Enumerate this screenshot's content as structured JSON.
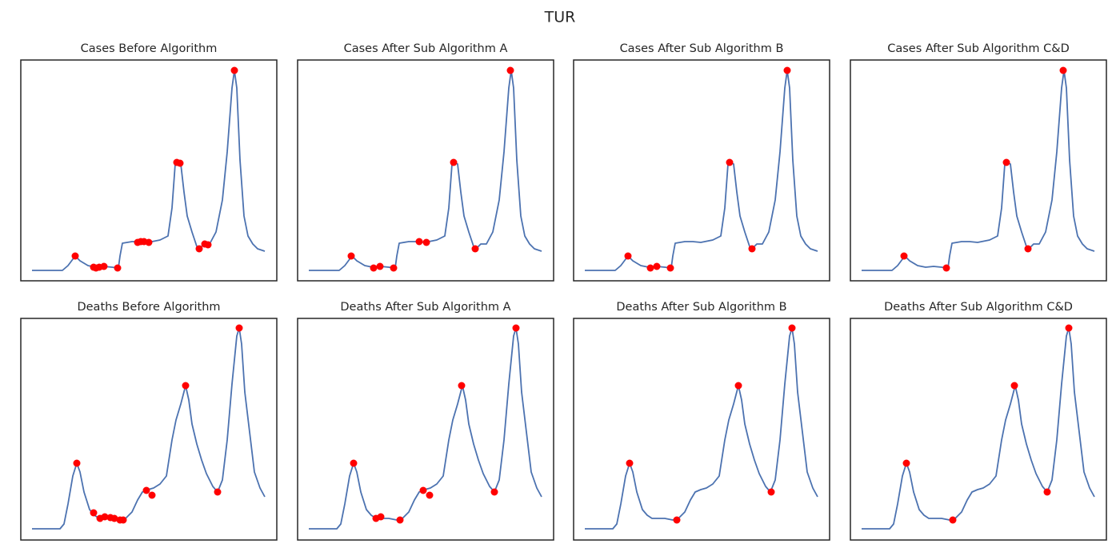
{
  "title": "TUR",
  "chart_data": [
    {
      "type": "line",
      "title": "Cases Before Algorithm",
      "xlim": [
        0,
        320
      ],
      "ylim": [
        0,
        276
      ],
      "x": [
        14,
        52,
        59,
        68,
        74,
        84,
        94,
        104,
        114,
        122,
        124,
        127,
        139,
        149,
        159,
        174,
        184,
        189,
        193,
        196,
        200,
        204,
        208,
        214,
        220,
        223,
        229,
        236,
        244,
        252,
        258,
        264,
        267,
        270,
        274,
        279,
        284,
        290,
        296,
        305
      ],
      "series": [
        {
          "color": "#4c72b0",
          "values": [
            13,
            13,
            19,
            31,
            25,
            19,
            17,
            18,
            17,
            16,
            31,
            47,
            49,
            49,
            48,
            51,
            56,
            91,
            146,
            148,
            146,
            111,
            81,
            61,
            43,
            40,
            46,
            46,
            61,
            101,
            161,
            241,
            263,
            241,
            151,
            81,
            56,
            46,
            40,
            37
          ]
        },
        {
          "type": "scatter",
          "color": "#ff0000",
          "x": [
            68,
            91,
            94,
            98,
            104,
            121,
            146,
            150,
            154,
            160,
            195,
            199,
            223,
            230,
            234,
            267
          ],
          "values": [
            31,
            17,
            16,
            17,
            18,
            16,
            48,
            49,
            49,
            48,
            148,
            147,
            40,
            46,
            45,
            263
          ]
        }
      ]
    },
    {
      "type": "line",
      "title": "Cases After Sub Algorithm A",
      "xlim": [
        0,
        320
      ],
      "ylim": [
        0,
        276
      ],
      "x": [
        14,
        52,
        59,
        68,
        74,
        84,
        94,
        104,
        114,
        122,
        124,
        127,
        139,
        149,
        159,
        174,
        184,
        189,
        193,
        196,
        200,
        204,
        208,
        214,
        220,
        223,
        229,
        236,
        244,
        252,
        258,
        264,
        267,
        270,
        274,
        279,
        284,
        290,
        296,
        305
      ],
      "series": [
        {
          "color": "#4c72b0",
          "values": [
            13,
            13,
            19,
            31,
            25,
            19,
            17,
            18,
            17,
            16,
            31,
            47,
            49,
            49,
            48,
            51,
            56,
            91,
            146,
            148,
            146,
            111,
            81,
            61,
            43,
            40,
            46,
            46,
            61,
            101,
            161,
            241,
            263,
            241,
            151,
            81,
            56,
            46,
            40,
            37
          ]
        },
        {
          "type": "scatter",
          "color": "#ff0000",
          "x": [
            67,
            95,
            103,
            120,
            152,
            161,
            195,
            222,
            266
          ],
          "values": [
            31,
            16,
            18,
            16,
            49,
            48,
            148,
            40,
            263
          ]
        }
      ]
    },
    {
      "type": "line",
      "title": "Cases After Sub Algorithm B",
      "xlim": [
        0,
        320
      ],
      "ylim": [
        0,
        276
      ],
      "x": [
        14,
        52,
        59,
        68,
        74,
        84,
        94,
        104,
        114,
        122,
        124,
        127,
        139,
        149,
        159,
        174,
        184,
        189,
        193,
        196,
        200,
        204,
        208,
        214,
        220,
        223,
        229,
        236,
        244,
        252,
        258,
        264,
        267,
        270,
        274,
        279,
        284,
        290,
        296,
        305
      ],
      "series": [
        {
          "color": "#4c72b0",
          "values": [
            13,
            13,
            19,
            31,
            25,
            19,
            17,
            18,
            17,
            16,
            31,
            47,
            49,
            49,
            48,
            51,
            56,
            91,
            146,
            148,
            146,
            111,
            81,
            61,
            43,
            40,
            46,
            46,
            61,
            101,
            161,
            241,
            263,
            241,
            151,
            81,
            56,
            46,
            40,
            37
          ]
        },
        {
          "type": "scatter",
          "color": "#ff0000",
          "x": [
            68,
            96,
            104,
            121,
            195,
            223,
            267
          ],
          "values": [
            31,
            16,
            18,
            16,
            148,
            40,
            263
          ]
        }
      ]
    },
    {
      "type": "line",
      "title": "Cases After Sub Algorithm C&D",
      "xlim": [
        0,
        320
      ],
      "ylim": [
        0,
        276
      ],
      "x": [
        14,
        52,
        59,
        68,
        74,
        84,
        94,
        104,
        114,
        122,
        124,
        127,
        139,
        149,
        159,
        174,
        184,
        189,
        193,
        196,
        200,
        204,
        208,
        214,
        220,
        223,
        229,
        236,
        244,
        252,
        258,
        264,
        267,
        270,
        274,
        279,
        284,
        290,
        296,
        305
      ],
      "series": [
        {
          "color": "#4c72b0",
          "values": [
            13,
            13,
            19,
            31,
            25,
            19,
            17,
            18,
            17,
            16,
            31,
            47,
            49,
            49,
            48,
            51,
            56,
            91,
            146,
            148,
            146,
            111,
            81,
            61,
            43,
            40,
            46,
            46,
            61,
            101,
            161,
            241,
            263,
            241,
            151,
            81,
            56,
            46,
            40,
            37
          ]
        },
        {
          "type": "scatter",
          "color": "#ff0000",
          "x": [
            67,
            120,
            195,
            222,
            266
          ],
          "values": [
            31,
            16,
            148,
            40,
            263
          ]
        }
      ]
    },
    {
      "type": "line",
      "title": "Deaths Before Algorithm",
      "xlim": [
        0,
        320
      ],
      "ylim": [
        0,
        277
      ],
      "x": [
        14,
        49,
        54,
        59,
        65,
        70,
        74,
        79,
        86,
        92,
        98,
        104,
        114,
        124,
        131,
        139,
        146,
        152,
        159,
        166,
        174,
        182,
        189,
        194,
        200,
        206,
        210,
        214,
        220,
        226,
        232,
        240,
        246,
        252,
        258,
        264,
        270,
        273,
        276,
        280,
        286,
        292,
        299,
        305
      ],
      "series": [
        {
          "color": "#4c72b0",
          "values": [
            14,
            14,
            20,
            45,
            80,
            96,
            85,
            60,
            38,
            31,
            27,
            27,
            27,
            25,
            27,
            35,
            50,
            60,
            63,
            65,
            70,
            80,
            125,
            150,
            170,
            193,
            175,
            145,
            120,
            100,
            83,
            67,
            60,
            75,
            125,
            195,
            255,
            265,
            245,
            185,
            135,
            85,
            65,
            54
          ]
        },
        {
          "type": "scatter",
          "color": "#ff0000",
          "x": [
            70,
            91,
            99,
            105,
            112,
            117,
            124,
            128,
            157,
            164,
            206,
            246,
            273
          ],
          "values": [
            96,
            34,
            27,
            29,
            28,
            27,
            25,
            25,
            62,
            56,
            193,
            60,
            265
          ]
        }
      ]
    },
    {
      "type": "line",
      "title": "Deaths After Sub Algorithm A",
      "xlim": [
        0,
        320
      ],
      "ylim": [
        0,
        277
      ],
      "x": [
        14,
        49,
        54,
        59,
        65,
        70,
        74,
        79,
        86,
        92,
        98,
        104,
        114,
        124,
        131,
        139,
        146,
        152,
        159,
        166,
        174,
        182,
        189,
        194,
        200,
        206,
        210,
        214,
        220,
        226,
        232,
        240,
        246,
        252,
        258,
        264,
        270,
        273,
        276,
        280,
        286,
        292,
        299,
        305
      ],
      "series": [
        {
          "color": "#4c72b0",
          "values": [
            14,
            14,
            20,
            45,
            80,
            96,
            85,
            60,
            38,
            31,
            27,
            27,
            27,
            25,
            27,
            35,
            50,
            60,
            63,
            65,
            70,
            80,
            125,
            150,
            170,
            193,
            175,
            145,
            120,
            100,
            83,
            67,
            60,
            75,
            125,
            195,
            255,
            265,
            245,
            185,
            135,
            85,
            65,
            54
          ]
        },
        {
          "type": "scatter",
          "color": "#ff0000",
          "x": [
            70,
            98,
            104,
            128,
            157,
            165,
            205,
            246,
            273
          ],
          "values": [
            96,
            27,
            29,
            25,
            62,
            56,
            193,
            60,
            265
          ]
        }
      ]
    },
    {
      "type": "line",
      "title": "Deaths After Sub Algorithm B",
      "xlim": [
        0,
        320
      ],
      "ylim": [
        0,
        277
      ],
      "x": [
        14,
        49,
        54,
        59,
        65,
        70,
        74,
        79,
        86,
        92,
        98,
        104,
        114,
        124,
        131,
        139,
        146,
        152,
        159,
        166,
        174,
        182,
        189,
        194,
        200,
        206,
        210,
        214,
        220,
        226,
        232,
        240,
        246,
        252,
        258,
        264,
        270,
        273,
        276,
        280,
        286,
        292,
        299,
        305
      ],
      "series": [
        {
          "color": "#4c72b0",
          "values": [
            14,
            14,
            20,
            45,
            80,
            96,
            85,
            60,
            38,
            31,
            27,
            27,
            27,
            25,
            27,
            35,
            50,
            60,
            63,
            65,
            70,
            80,
            125,
            150,
            170,
            193,
            175,
            145,
            120,
            100,
            83,
            67,
            60,
            75,
            125,
            195,
            255,
            265,
            245,
            185,
            135,
            85,
            65,
            54
          ]
        },
        {
          "type": "scatter",
          "color": "#ff0000",
          "x": [
            70,
            129,
            206,
            247,
            273
          ],
          "values": [
            96,
            25,
            193,
            60,
            265
          ]
        }
      ]
    },
    {
      "type": "line",
      "title": "Deaths After Sub Algorithm C&D",
      "xlim": [
        0,
        320
      ],
      "ylim": [
        0,
        277
      ],
      "x": [
        14,
        49,
        54,
        59,
        65,
        70,
        74,
        79,
        86,
        92,
        98,
        104,
        114,
        124,
        131,
        139,
        146,
        152,
        159,
        166,
        174,
        182,
        189,
        194,
        200,
        206,
        210,
        214,
        220,
        226,
        232,
        240,
        246,
        252,
        258,
        264,
        270,
        273,
        276,
        280,
        286,
        292,
        299,
        305
      ],
      "series": [
        {
          "color": "#4c72b0",
          "values": [
            14,
            14,
            20,
            45,
            80,
            96,
            85,
            60,
            38,
            31,
            27,
            27,
            27,
            25,
            27,
            35,
            50,
            60,
            63,
            65,
            70,
            80,
            125,
            150,
            170,
            193,
            175,
            145,
            120,
            100,
            83,
            67,
            60,
            75,
            125,
            195,
            255,
            265,
            245,
            185,
            135,
            85,
            65,
            54
          ]
        },
        {
          "type": "scatter",
          "color": "#ff0000",
          "x": [
            70,
            128,
            205,
            246,
            273
          ],
          "values": [
            96,
            25,
            193,
            60,
            265
          ]
        }
      ]
    }
  ]
}
